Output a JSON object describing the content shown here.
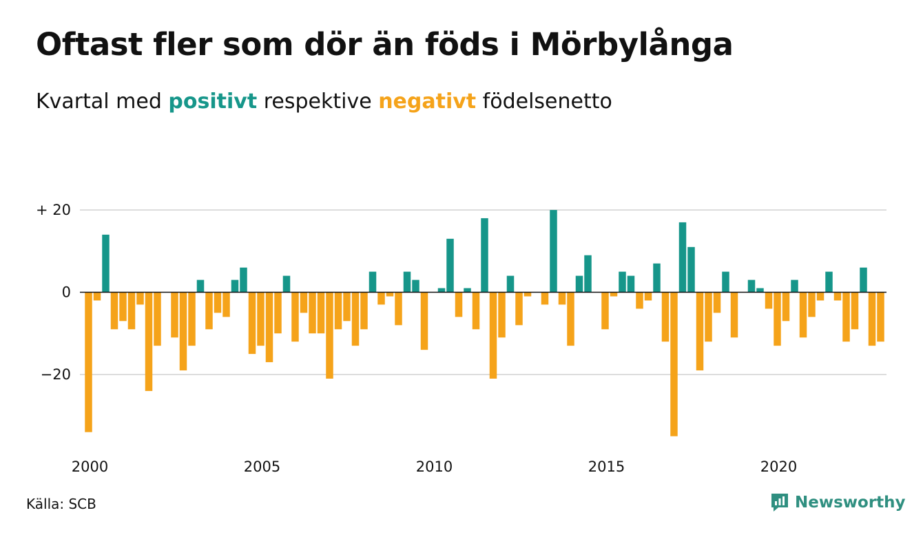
{
  "title": "Oftast fler som dör än föds i Mörbylånga",
  "subtitle": {
    "prefix": "Kvartal med ",
    "positive_word": "positivt",
    "middle": " respektive ",
    "negative_word": "negativt",
    "suffix": " födelsenetto"
  },
  "colors": {
    "positive": "#16968a",
    "negative": "#f5a31a",
    "grid": "#dddddd",
    "axis": "#111111",
    "brand": "#2f8f80"
  },
  "source": "Källa: SCB",
  "brand": {
    "name": "Newsworthy",
    "icon": "newsworthy-logo-icon"
  },
  "chart_data": {
    "type": "bar",
    "start_year": 2000,
    "periods_per_year": 4,
    "x_ticks": [
      {
        "value": 2000,
        "label": "2000"
      },
      {
        "value": 2005,
        "label": "2005"
      },
      {
        "value": 2010,
        "label": "2010"
      },
      {
        "value": 2015,
        "label": "2015"
      },
      {
        "value": 2020,
        "label": "2020"
      }
    ],
    "y_ticks": [
      {
        "value": 20,
        "label": "+ 20"
      },
      {
        "value": 0,
        "label": "0"
      },
      {
        "value": -20,
        "label": "−20"
      }
    ],
    "ylim": [
      -36,
      23
    ],
    "grid": true,
    "values": [
      -34,
      -2,
      14,
      -9,
      -7,
      -9,
      -3,
      -24,
      -13,
      0,
      -11,
      -19,
      -13,
      3,
      -9,
      -5,
      -6,
      3,
      6,
      -15,
      -13,
      -17,
      -10,
      4,
      -12,
      -5,
      -10,
      -10,
      -21,
      -9,
      -7,
      -13,
      -9,
      5,
      -3,
      -1,
      -8,
      5,
      3,
      -14,
      0,
      1,
      13,
      -6,
      1,
      -9,
      18,
      -21,
      -11,
      4,
      -8,
      -1,
      0,
      -3,
      20,
      -3,
      -13,
      4,
      9,
      0,
      -9,
      -1,
      5,
      4,
      -4,
      -2,
      7,
      -12,
      -35,
      17,
      11,
      -19,
      -12,
      -5,
      5,
      -11,
      0,
      3,
      1,
      -4,
      -13,
      -7,
      3,
      -11,
      -6,
      -2,
      5,
      -2,
      -12,
      -9,
      6,
      -13,
      -12
    ]
  }
}
